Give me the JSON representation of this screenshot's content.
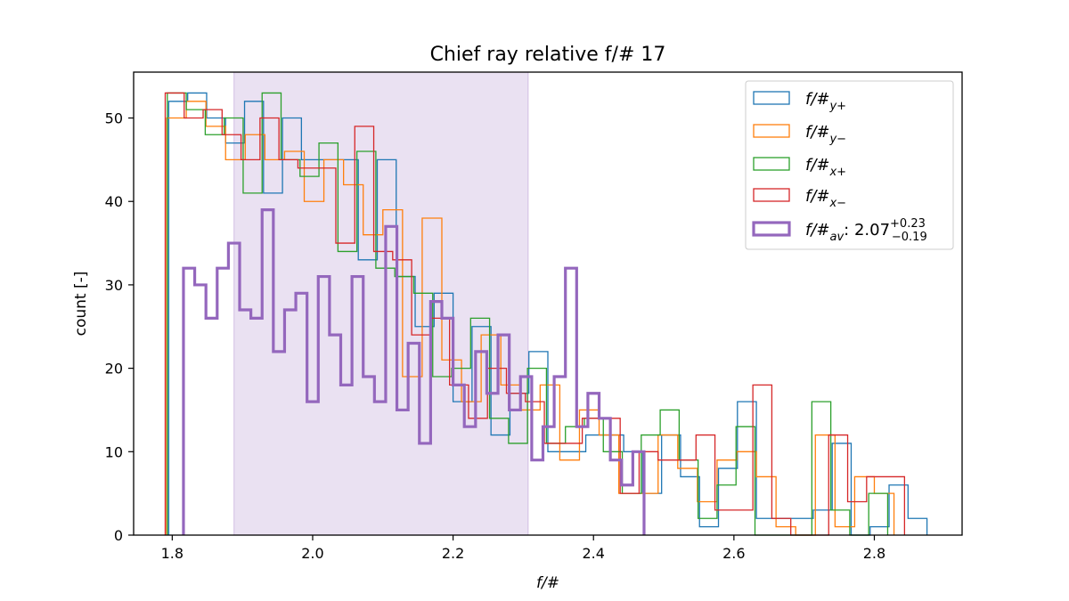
{
  "chart_data": {
    "type": "histogram",
    "title": "Chief ray relative f/# 17",
    "xlabel": "f/#",
    "ylabel": "count [-]",
    "xlim": [
      1.745,
      2.925
    ],
    "ylim": [
      0,
      55.5
    ],
    "xticks": [
      "1.8",
      "2.0",
      "2.2",
      "2.4",
      "2.6",
      "2.8"
    ],
    "xtick_values": [
      1.8,
      2.0,
      2.2,
      2.4,
      2.6,
      2.8
    ],
    "yticks": [
      "0",
      "10",
      "20",
      "30",
      "40",
      "50"
    ],
    "ytick_values": [
      0,
      10,
      20,
      30,
      40,
      50
    ],
    "grid": false,
    "legend_placement": "upper right",
    "highlight_span": {
      "x0": 1.888,
      "x1": 2.307,
      "color": "#9467bd",
      "opacity": 0.2
    },
    "series": [
      {
        "name": "f/#_{y+}",
        "color": "#1f77b4",
        "linewidth": 1.3,
        "edges": [
          1.795,
          1.822,
          1.849,
          1.876,
          1.903,
          1.93,
          1.957,
          1.984,
          2.011,
          2.038,
          2.065,
          2.092,
          2.119,
          2.146,
          2.173,
          2.2,
          2.227,
          2.254,
          2.281,
          2.308,
          2.335,
          2.362,
          2.389,
          2.416,
          2.443,
          2.47,
          2.497,
          2.524,
          2.551,
          2.578,
          2.605,
          2.632,
          2.659,
          2.686,
          2.713,
          2.74,
          2.767,
          2.794,
          2.821,
          2.848,
          2.875
        ],
        "values": [
          52,
          53,
          50,
          47,
          52,
          41,
          50,
          45,
          45,
          45,
          33,
          45,
          31,
          25,
          29,
          16,
          25,
          12,
          17,
          22,
          10,
          10,
          12,
          12,
          10,
          5,
          12,
          7,
          1,
          8,
          16,
          2,
          2,
          2,
          3,
          11,
          0,
          1,
          6,
          2
        ]
      },
      {
        "name": "f/#_{y-}",
        "color": "#ff7f0e",
        "linewidth": 1.3,
        "edges": [
          1.792,
          1.82,
          1.848,
          1.876,
          1.904,
          1.932,
          1.96,
          1.988,
          2.016,
          2.044,
          2.072,
          2.1,
          2.128,
          2.156,
          2.184,
          2.212,
          2.24,
          2.268,
          2.296,
          2.324,
          2.352,
          2.38,
          2.408,
          2.436,
          2.464,
          2.492,
          2.52,
          2.548,
          2.576,
          2.604,
          2.632,
          2.66,
          2.688,
          2.716,
          2.744,
          2.772,
          2.8,
          2.828
        ],
        "values": [
          50,
          52,
          49,
          45,
          48,
          45,
          46,
          40,
          45,
          42,
          36,
          39,
          19,
          38,
          21,
          16,
          24,
          18,
          15,
          18,
          9,
          15,
          12,
          5,
          5,
          12,
          8,
          4,
          9,
          10,
          7,
          1,
          0,
          12,
          1,
          7,
          5
        ]
      },
      {
        "name": "f/#_{x+}",
        "color": "#2ca02c",
        "linewidth": 1.3,
        "edges": [
          1.793,
          1.82,
          1.847,
          1.874,
          1.901,
          1.928,
          1.955,
          1.982,
          2.009,
          2.036,
          2.063,
          2.09,
          2.117,
          2.144,
          2.171,
          2.198,
          2.225,
          2.252,
          2.279,
          2.306,
          2.333,
          2.36,
          2.387,
          2.414,
          2.441,
          2.468,
          2.495,
          2.522,
          2.549,
          2.576,
          2.603,
          2.63,
          2.657,
          2.684,
          2.711,
          2.738,
          2.765,
          2.792,
          2.819
        ],
        "values": [
          53,
          51,
          48,
          50,
          41,
          53,
          45,
          43,
          47,
          34,
          46,
          32,
          31,
          29,
          19,
          20,
          26,
          14,
          11,
          20,
          11,
          13,
          14,
          10,
          5,
          12,
          15,
          9,
          2,
          6,
          13,
          0,
          0,
          0,
          16,
          3,
          0,
          5
        ]
      },
      {
        "name": "f/#_{x-}",
        "color": "#d62728",
        "linewidth": 1.3,
        "edges": [
          1.79,
          1.817,
          1.844,
          1.871,
          1.898,
          1.925,
          1.952,
          1.979,
          2.006,
          2.033,
          2.06,
          2.087,
          2.114,
          2.141,
          2.168,
          2.195,
          2.222,
          2.249,
          2.276,
          2.303,
          2.33,
          2.357,
          2.384,
          2.411,
          2.438,
          2.465,
          2.492,
          2.519,
          2.546,
          2.573,
          2.6,
          2.627,
          2.654,
          2.681,
          2.708,
          2.735,
          2.762,
          2.789,
          2.816,
          2.843
        ],
        "values": [
          53,
          50,
          51,
          48,
          45,
          50,
          45,
          44,
          44,
          35,
          49,
          34,
          33,
          24,
          26,
          18,
          14,
          20,
          17,
          16,
          11,
          11,
          14,
          14,
          5,
          10,
          9,
          9,
          12,
          3,
          3,
          18,
          2,
          0,
          0,
          12,
          4,
          7,
          7
        ]
      },
      {
        "name": "f/#_{av}: 2.07^{+0.23}_{-0.19}",
        "color": "#9467bd",
        "linewidth": 3.2,
        "edges": [
          1.816,
          1.832,
          1.848,
          1.864,
          1.88,
          1.896,
          1.912,
          1.928,
          1.944,
          1.96,
          1.976,
          1.992,
          2.008,
          2.024,
          2.04,
          2.056,
          2.072,
          2.088,
          2.104,
          2.12,
          2.136,
          2.152,
          2.168,
          2.184,
          2.2,
          2.216,
          2.232,
          2.248,
          2.264,
          2.28,
          2.296,
          2.312,
          2.328,
          2.344,
          2.36,
          2.376,
          2.392,
          2.408,
          2.424,
          2.44,
          2.456,
          2.472
        ],
        "values": [
          32,
          30,
          26,
          32,
          35,
          27,
          26,
          39,
          22,
          27,
          29,
          16,
          31,
          24,
          18,
          31,
          19,
          16,
          37,
          15,
          23,
          11,
          28,
          26,
          18,
          13,
          22,
          17,
          24,
          15,
          19,
          9,
          13,
          19,
          32,
          13,
          17,
          14,
          9,
          6,
          10
        ]
      }
    ],
    "legend": [
      {
        "label": "f/#",
        "sub": "y+",
        "sup": "",
        "color": "#1f77b4"
      },
      {
        "label": "f/#",
        "sub": "y−",
        "sup": "",
        "color": "#ff7f0e"
      },
      {
        "label": "f/#",
        "sub": "x+",
        "sup": "",
        "color": "#2ca02c"
      },
      {
        "label": "f/#",
        "sub": "x−",
        "sup": "",
        "color": "#d62728"
      },
      {
        "label": "f/#",
        "sub": "av",
        "value": ": 2.07",
        "sup": "+0.23",
        "sub2": "−0.19",
        "color": "#9467bd"
      }
    ]
  }
}
